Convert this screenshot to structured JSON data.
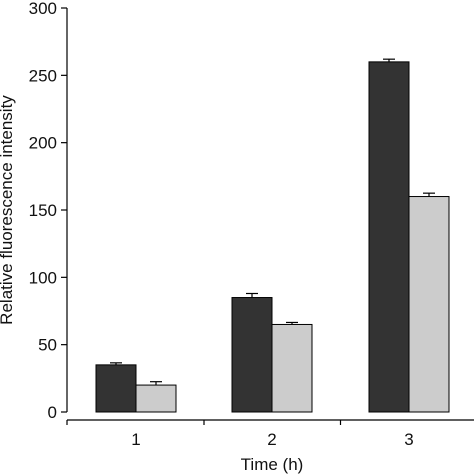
{
  "chart_data": {
    "type": "bar",
    "title": "",
    "xlabel": "Time (h)",
    "ylabel": "Relative fluorescence intensity",
    "categories": [
      "1",
      "2",
      "3"
    ],
    "ylim": [
      0,
      300
    ],
    "yticks": [
      0,
      50,
      100,
      150,
      200,
      250,
      300
    ],
    "grid": false,
    "series": [
      {
        "color": "#333333",
        "values": [
          35,
          85,
          260
        ],
        "errors": [
          1.5,
          3,
          2
        ]
      },
      {
        "color": "#cccccc",
        "values": [
          20,
          65,
          160
        ],
        "errors": [
          2.5,
          1.5,
          2.5
        ]
      }
    ]
  }
}
